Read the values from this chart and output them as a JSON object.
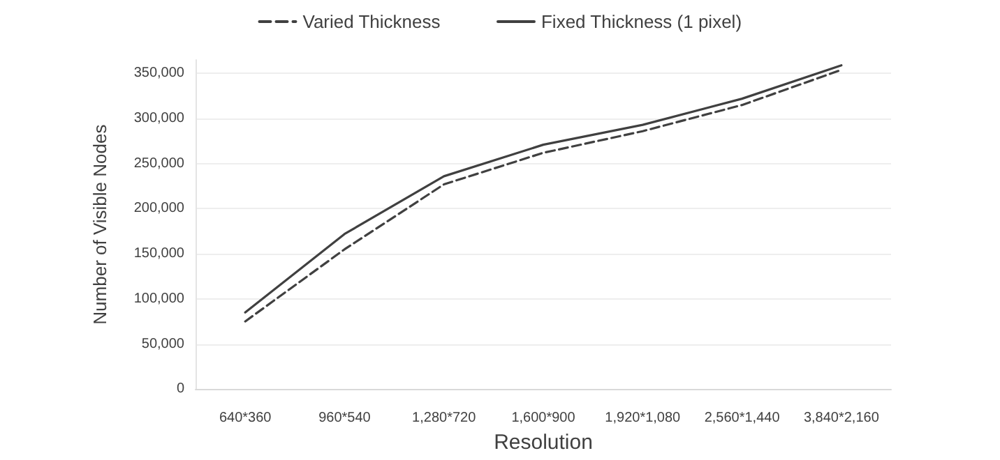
{
  "chart_data": {
    "type": "line",
    "xlabel": "Resolution",
    "ylabel": "Number of Visible Nodes",
    "categories": [
      "640*360",
      "960*540",
      "1,280*720",
      "1,600*900",
      "1,920*1,080",
      "2,560*1,440",
      "3,840*2,160"
    ],
    "series": [
      {
        "name": "Varied Thickness",
        "color": "#404040",
        "line_style": "dashed",
        "values": [
          75000,
          155000,
          227000,
          262000,
          286000,
          315000,
          354000
        ]
      },
      {
        "name": "Fixed Thickness (1 pixel)",
        "color": "#404040",
        "line_style": "solid",
        "values": [
          85000,
          172000,
          236000,
          271000,
          293000,
          322000,
          359000
        ]
      }
    ],
    "ylim": [
      0,
      365000
    ],
    "yticks": [
      0,
      {
        "value": 50000,
        "label": "50,000"
      },
      {
        "value": 100000,
        "label": "100,000"
      },
      {
        "value": 150000,
        "label": "150,000"
      },
      {
        "value": 200000,
        "label": "200,000"
      },
      {
        "value": 250000,
        "label": "250,000"
      },
      {
        "value": 300000,
        "label": "300,000"
      },
      {
        "value": 350000,
        "label": "350,000"
      }
    ],
    "grid": "y",
    "legend": "top",
    "marker": "none"
  }
}
